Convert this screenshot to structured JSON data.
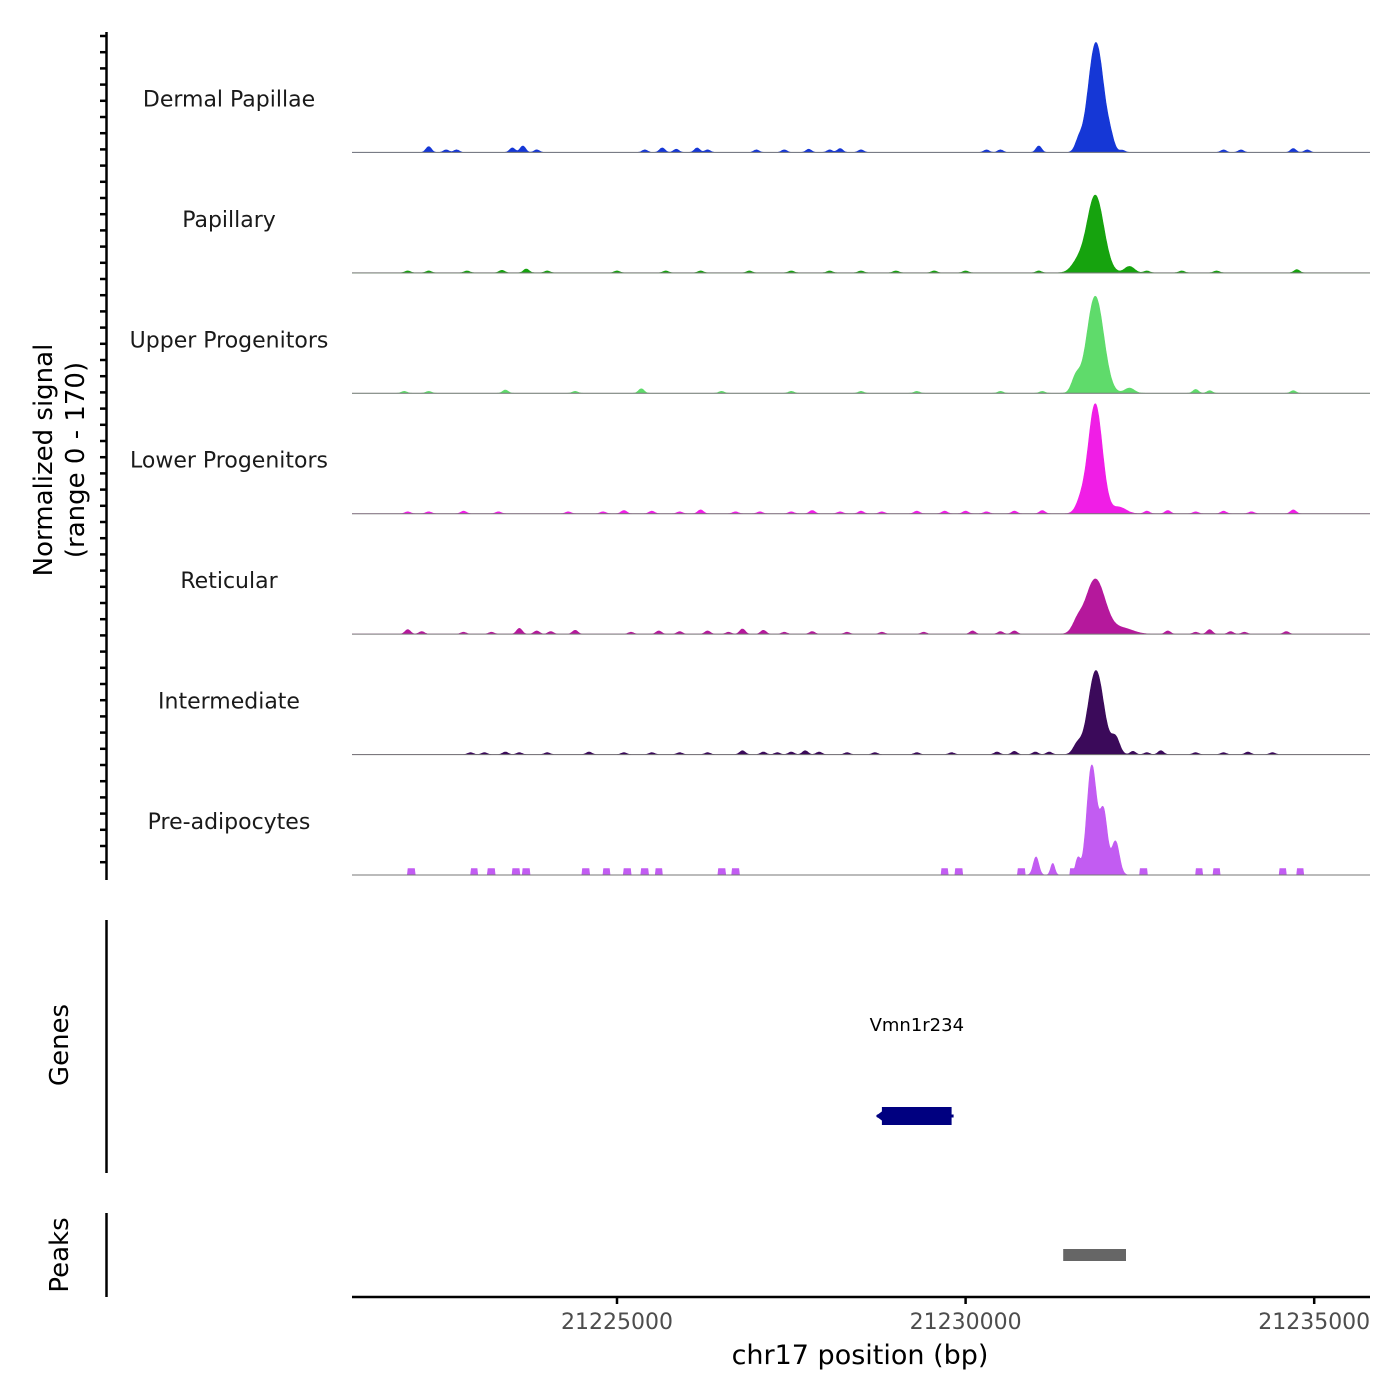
{
  "chart_data": {
    "type": "area",
    "chromosome": "chr17",
    "signal_ylabel": "Normalized signal",
    "signal_range_label": "(range 0 - 170)",
    "signal_ylim": [
      0,
      170
    ],
    "xlim": [
      21221200,
      21235800
    ],
    "xlabel": "chr17 position (bp)",
    "xticks": [
      21225000,
      21230000,
      21235000
    ],
    "xtick_labels": [
      "21225000",
      "21230000",
      "21235000"
    ],
    "tracks": [
      {
        "name": "Dermal Papillae",
        "color": "#1537d6",
        "main_peak": {
          "center": 21231870,
          "height": 170,
          "width": 110
        },
        "side_peaks": [
          {
            "center": 21231620,
            "height": 14,
            "width": 50
          },
          {
            "center": 21232080,
            "height": 12,
            "width": 50
          }
        ],
        "bumps": [
          [
            21222300,
            9
          ],
          [
            21222550,
            4
          ],
          [
            21222700,
            4
          ],
          [
            21223500,
            7
          ],
          [
            21223650,
            10
          ],
          [
            21223850,
            4
          ],
          [
            21225400,
            4
          ],
          [
            21225650,
            7
          ],
          [
            21225850,
            5
          ],
          [
            21226150,
            7
          ],
          [
            21226300,
            4
          ],
          [
            21227000,
            4
          ],
          [
            21227400,
            4
          ],
          [
            21227750,
            5
          ],
          [
            21228050,
            4
          ],
          [
            21228200,
            6
          ],
          [
            21228500,
            4
          ],
          [
            21230300,
            4
          ],
          [
            21230500,
            4
          ],
          [
            21231050,
            10
          ],
          [
            21232250,
            3
          ],
          [
            21233700,
            4
          ],
          [
            21233950,
            4
          ],
          [
            21234700,
            6
          ],
          [
            21234900,
            4
          ]
        ]
      },
      {
        "name": "Papillary",
        "color": "#16a30e",
        "main_peak": {
          "center": 21231860,
          "height": 120,
          "width": 120
        },
        "side_peaks": [
          {
            "center": 21231600,
            "height": 14,
            "width": 90
          },
          {
            "center": 21232350,
            "height": 10,
            "width": 70
          }
        ],
        "bumps": [
          [
            21222000,
            3
          ],
          [
            21222300,
            3
          ],
          [
            21222850,
            3
          ],
          [
            21223350,
            4
          ],
          [
            21223700,
            6
          ],
          [
            21224000,
            3
          ],
          [
            21225000,
            3
          ],
          [
            21225700,
            3
          ],
          [
            21226200,
            3
          ],
          [
            21226900,
            3
          ],
          [
            21227500,
            3
          ],
          [
            21228050,
            3
          ],
          [
            21228500,
            3
          ],
          [
            21229000,
            3
          ],
          [
            21229550,
            3
          ],
          [
            21230000,
            3
          ],
          [
            21231050,
            3
          ],
          [
            21232600,
            3
          ],
          [
            21233100,
            3
          ],
          [
            21233600,
            3
          ],
          [
            21234750,
            5
          ]
        ]
      },
      {
        "name": "Upper Progenitors",
        "color": "#5fdb6b",
        "main_peak": {
          "center": 21231860,
          "height": 150,
          "width": 120
        },
        "side_peaks": [
          {
            "center": 21231580,
            "height": 22,
            "width": 60
          },
          {
            "center": 21232350,
            "height": 8,
            "width": 70
          }
        ],
        "bumps": [
          [
            21221950,
            3
          ],
          [
            21222300,
            3
          ],
          [
            21223400,
            5
          ],
          [
            21224400,
            3
          ],
          [
            21225350,
            7
          ],
          [
            21226500,
            3
          ],
          [
            21227500,
            3
          ],
          [
            21228500,
            3
          ],
          [
            21229300,
            3
          ],
          [
            21230500,
            3
          ],
          [
            21231100,
            3
          ],
          [
            21233300,
            6
          ],
          [
            21233500,
            4
          ],
          [
            21234700,
            4
          ]
        ]
      },
      {
        "name": "Lower Progenitors",
        "color": "#f01ee6",
        "main_peak": {
          "center": 21231860,
          "height": 170,
          "width": 100
        },
        "side_peaks": [
          {
            "center": 21231650,
            "height": 16,
            "width": 70
          },
          {
            "center": 21232200,
            "height": 10,
            "width": 100
          }
        ],
        "bumps": [
          [
            21222000,
            3
          ],
          [
            21222300,
            3
          ],
          [
            21222800,
            4
          ],
          [
            21223300,
            3
          ],
          [
            21224300,
            3
          ],
          [
            21224800,
            3
          ],
          [
            21225100,
            5
          ],
          [
            21225500,
            4
          ],
          [
            21225900,
            3
          ],
          [
            21226200,
            6
          ],
          [
            21226700,
            3
          ],
          [
            21227050,
            3
          ],
          [
            21227500,
            3
          ],
          [
            21227800,
            5
          ],
          [
            21228200,
            3
          ],
          [
            21228500,
            4
          ],
          [
            21228800,
            3
          ],
          [
            21229300,
            4
          ],
          [
            21229700,
            4
          ],
          [
            21230000,
            4
          ],
          [
            21230300,
            3
          ],
          [
            21230700,
            4
          ],
          [
            21231100,
            5
          ],
          [
            21232600,
            4
          ],
          [
            21232900,
            5
          ],
          [
            21233300,
            3
          ],
          [
            21233700,
            4
          ],
          [
            21234100,
            3
          ],
          [
            21234700,
            6
          ]
        ]
      },
      {
        "name": "Reticular",
        "color": "#b5189c",
        "main_peak": {
          "center": 21231860,
          "height": 85,
          "width": 140
        },
        "side_peaks": [
          {
            "center": 21231600,
            "height": 14,
            "width": 70
          },
          {
            "center": 21232250,
            "height": 9,
            "width": 150
          }
        ],
        "bumps": [
          [
            21222000,
            7
          ],
          [
            21222200,
            4
          ],
          [
            21222800,
            3
          ],
          [
            21223200,
            3
          ],
          [
            21223600,
            9
          ],
          [
            21223850,
            5
          ],
          [
            21224050,
            4
          ],
          [
            21224400,
            6
          ],
          [
            21225200,
            3
          ],
          [
            21225600,
            5
          ],
          [
            21225900,
            4
          ],
          [
            21226300,
            5
          ],
          [
            21226600,
            3
          ],
          [
            21226800,
            8
          ],
          [
            21227100,
            6
          ],
          [
            21227400,
            3
          ],
          [
            21227800,
            4
          ],
          [
            21228300,
            3
          ],
          [
            21228800,
            3
          ],
          [
            21229400,
            3
          ],
          [
            21230100,
            5
          ],
          [
            21230500,
            4
          ],
          [
            21230700,
            5
          ],
          [
            21232900,
            5
          ],
          [
            21233300,
            3
          ],
          [
            21233500,
            7
          ],
          [
            21233800,
            4
          ],
          [
            21234000,
            3
          ],
          [
            21234600,
            4
          ]
        ]
      },
      {
        "name": "Intermediate",
        "color": "#3b0a5a",
        "main_peak": {
          "center": 21231870,
          "height": 130,
          "width": 110
        },
        "side_peaks": [
          {
            "center": 21231600,
            "height": 14,
            "width": 60
          },
          {
            "center": 21232150,
            "height": 25,
            "width": 60
          }
        ],
        "bumps": [
          [
            21222900,
            3
          ],
          [
            21223100,
            3
          ],
          [
            21223400,
            4
          ],
          [
            21223600,
            3
          ],
          [
            21224000,
            3
          ],
          [
            21224600,
            4
          ],
          [
            21225100,
            3
          ],
          [
            21225500,
            3
          ],
          [
            21225900,
            3
          ],
          [
            21226300,
            3
          ],
          [
            21226800,
            6
          ],
          [
            21227100,
            4
          ],
          [
            21227300,
            3
          ],
          [
            21227500,
            4
          ],
          [
            21227700,
            6
          ],
          [
            21227900,
            4
          ],
          [
            21228300,
            3
          ],
          [
            21228700,
            3
          ],
          [
            21229300,
            3
          ],
          [
            21229800,
            3
          ],
          [
            21230450,
            4
          ],
          [
            21230700,
            5
          ],
          [
            21231000,
            4
          ],
          [
            21231200,
            4
          ],
          [
            21232400,
            5
          ],
          [
            21232600,
            3
          ],
          [
            21232800,
            6
          ],
          [
            21233300,
            3
          ],
          [
            21233700,
            3
          ],
          [
            21234050,
            4
          ],
          [
            21234400,
            3
          ]
        ]
      },
      {
        "name": "Pre-adipocytes",
        "color": "#c25cf2",
        "main_peak": {
          "center": 21231810,
          "height": 170,
          "width": 70
        },
        "side_peaks": [
          {
            "center": 21231980,
            "height": 95,
            "width": 55
          },
          {
            "center": 21232150,
            "height": 52,
            "width": 55
          },
          {
            "center": 21231610,
            "height": 25,
            "width": 35
          },
          {
            "center": 21231010,
            "height": 28,
            "width": 40
          },
          {
            "center": 21231250,
            "height": 18,
            "width": 30
          }
        ],
        "blocks": [
          [
            21222000,
            21222100,
            10
          ],
          [
            21222900,
            21223000,
            10
          ],
          [
            21223150,
            21223250,
            10
          ],
          [
            21223500,
            21223600,
            10
          ],
          [
            21223650,
            21223750,
            10
          ],
          [
            21224500,
            21224600,
            10
          ],
          [
            21224800,
            21224900,
            10
          ],
          [
            21225100,
            21225200,
            10
          ],
          [
            21225350,
            21225450,
            10
          ],
          [
            21225550,
            21225650,
            10
          ],
          [
            21226450,
            21226550,
            10
          ],
          [
            21226650,
            21226750,
            10
          ],
          [
            21229650,
            21229750,
            10
          ],
          [
            21229850,
            21229950,
            10
          ],
          [
            21230750,
            21230850,
            10
          ],
          [
            21231500,
            21231600,
            10
          ],
          [
            21232500,
            21232600,
            10
          ],
          [
            21233300,
            21233400,
            10
          ],
          [
            21233550,
            21233650,
            10
          ],
          [
            21234500,
            21234600,
            10
          ],
          [
            21234750,
            21234850,
            10
          ]
        ]
      }
    ],
    "genes": {
      "label": "Genes",
      "items": [
        {
          "name": "Vmn1r234",
          "start": 21228800,
          "end": 21229800,
          "strand": "-",
          "color": "#000080"
        }
      ]
    },
    "peaks": {
      "label": "Peaks",
      "items": [
        {
          "start": 21231400,
          "end": 21232300,
          "color": "#666666"
        }
      ]
    }
  }
}
